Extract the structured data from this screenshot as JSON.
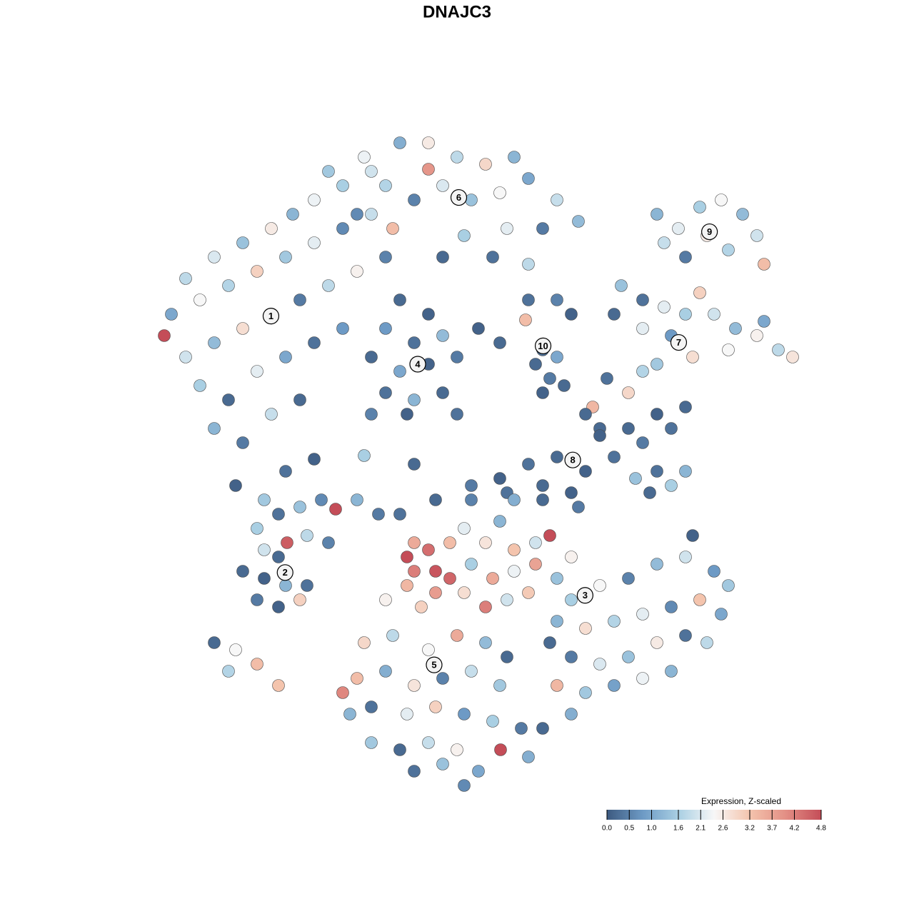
{
  "chart_data": {
    "type": "scatter",
    "title": "DNAJC3",
    "xlim": [
      -48,
      48
    ],
    "ylim": [
      -46,
      46
    ],
    "colorbar_title": "Expression, Z-scaled",
    "clim": [
      0,
      4.8
    ],
    "colormap": [
      "#3d5a80",
      "#6d9ac5",
      "#a9cfe3",
      "#f7f7f7",
      "#f4c4ad",
      "#e38f85",
      "#c44d58"
    ],
    "colorbar_ticks": [
      {
        "value": 0,
        "label": "0.0"
      },
      0.5,
      {
        "value": 1,
        "label": "1.0"
      },
      1.6,
      2.1,
      2.6,
      3.2,
      3.7,
      4.2,
      4.8
    ],
    "series": [
      {
        "name": "1",
        "x": [
          -40,
          -36,
          -32,
          -28,
          -25,
          -22,
          -18,
          -14,
          -42,
          -38,
          -34,
          -30,
          -26,
          -22,
          -18,
          -14,
          -43,
          -40,
          -36,
          -32,
          -28,
          -24,
          -20,
          -16,
          -12,
          -38,
          -34,
          -30,
          -26,
          -22,
          -18,
          -36,
          -32,
          -28,
          -24,
          -33,
          -29,
          -26
        ],
        "y": [
          25,
          28,
          30,
          32,
          34,
          36,
          38,
          40,
          20,
          22,
          24,
          26,
          28,
          30,
          32,
          34,
          17,
          14,
          16,
          18,
          20,
          22,
          24,
          26,
          28,
          10,
          8,
          12,
          14,
          16,
          18,
          4,
          2,
          6,
          8,
          -4,
          -6,
          -2
        ],
        "values": [
          1.8,
          2.1,
          1.4,
          2.6,
          1.2,
          2.3,
          1.6,
          2.0,
          1.0,
          2.4,
          1.7,
          3.0,
          1.5,
          2.2,
          0.6,
          1.9,
          4.8,
          2.0,
          1.3,
          2.8,
          1.1,
          0.4,
          1.8,
          2.5,
          0.5,
          1.6,
          0.2,
          2.2,
          1.0,
          0.3,
          0.8,
          1.2,
          0.4,
          1.9,
          0.2,
          0.1,
          1.5,
          0.3
        ]
      },
      {
        "name": "2",
        "x": [
          -30,
          -27,
          -24,
          -21,
          -19,
          -16,
          -13,
          -29,
          -27,
          -23,
          -20,
          -25.8,
          -32,
          -29,
          -26,
          -23,
          -30,
          -27,
          -24,
          -36,
          -33,
          -30,
          -34,
          -27
        ],
        "y": [
          -10,
          -8,
          -7,
          -6,
          -7.3,
          -6,
          -8,
          -13,
          -14,
          -11,
          -12,
          -12,
          -16,
          -17,
          -18,
          -18,
          -20,
          -21,
          -20,
          -26,
          -27,
          -29,
          -30,
          -32
        ],
        "values": [
          1.6,
          0.3,
          1.4,
          0.6,
          4.8,
          1.2,
          0.4,
          2.0,
          0.2,
          1.8,
          0.5,
          4.6,
          0.2,
          0.1,
          1.2,
          0.3,
          0.4,
          0.1,
          3.0,
          0.2,
          2.4,
          3.3,
          1.7,
          3.2
        ]
      },
      {
        "name": "3",
        "x": [
          -1,
          2,
          4,
          6,
          9,
          11,
          14,
          0,
          3,
          6,
          9,
          12,
          -1,
          2,
          5,
          8,
          0,
          5,
          10,
          15,
          14,
          18,
          22,
          26,
          30,
          34,
          36,
          12,
          16,
          20,
          24,
          28,
          32,
          35,
          14,
          18,
          22,
          26,
          30,
          33,
          12,
          16,
          20,
          24,
          28,
          11,
          14,
          31
        ],
        "y": [
          -10,
          -12,
          -9,
          -13,
          -12,
          -11,
          -14,
          -15,
          -17,
          -16,
          -15,
          -17,
          -19,
          -21,
          -20,
          -19,
          -6,
          -5,
          -6,
          -7,
          -20,
          -18,
          -17,
          -15,
          -14,
          -16,
          -18,
          -23,
          -24,
          -23,
          -22,
          -21,
          -20,
          -22,
          -28,
          -29,
          -28,
          -26,
          -25,
          -26,
          -32,
          -33,
          -32,
          -31,
          -30,
          -26,
          -36,
          -11
        ],
        "values": [
          2.2,
          2.7,
          1.2,
          3.2,
          2.0,
          4.8,
          2.5,
          1.6,
          3.6,
          2.3,
          3.7,
          1.4,
          2.8,
          4.2,
          2.0,
          3.1,
          0.5,
          0.3,
          0.2,
          0.4,
          1.6,
          2.4,
          0.5,
          1.3,
          2.0,
          0.8,
          1.5,
          1.2,
          2.8,
          1.7,
          2.2,
          0.6,
          3.2,
          1.0,
          0.4,
          2.1,
          1.4,
          2.6,
          0.3,
          1.8,
          3.4,
          1.5,
          0.9,
          2.3,
          1.2,
          0.2,
          1.1,
          0.1
        ]
      },
      {
        "name": "4",
        "x": [
          -10,
          -6,
          -12,
          -8,
          -4,
          -14,
          -10,
          -6,
          -2,
          -12,
          -8,
          -4,
          -9,
          -14,
          -2,
          1
        ],
        "y": [
          22,
          20,
          18,
          16,
          17,
          14,
          12,
          13,
          14,
          9,
          8,
          9,
          6,
          6,
          6,
          18
        ],
        "values": [
          0.2,
          0.1,
          0.8,
          0.3,
          1.3,
          0.2,
          1.0,
          0.1,
          0.4,
          0.3,
          1.2,
          0.2,
          0.1,
          0.5,
          0.3,
          0.1
        ]
      },
      {
        "name": "5",
        "x": [
          -8,
          -9,
          -6,
          -8,
          -5,
          -3,
          -5,
          -9,
          -7,
          -3,
          -10,
          -5,
          -12,
          -15,
          -11,
          -6,
          -2,
          2,
          5,
          -16,
          -12,
          -8,
          -4,
          0,
          4,
          -17,
          -14,
          -9,
          -5,
          -1,
          3,
          7,
          -14,
          -10,
          -6,
          -2,
          1,
          4.1,
          -8,
          -4,
          -1,
          8,
          10,
          -18
        ],
        "y": [
          -12,
          -14,
          -13,
          -16,
          -16,
          -17,
          -19,
          -18,
          -21,
          -12,
          -8,
          -6,
          -20,
          -26,
          -25,
          -27,
          -25,
          -26,
          -28,
          -31,
          -30,
          -32,
          -31,
          -30,
          -32,
          -36,
          -35,
          -36,
          -35,
          -36,
          -37,
          -38,
          -40,
          -41,
          -40,
          -41,
          -44,
          -41,
          -44,
          -43,
          -46,
          -42,
          -38,
          -33
        ],
        "values": [
          3.6,
          4.8,
          4.4,
          4.2,
          4.7,
          4.5,
          3.8,
          3.4,
          3.0,
          3.3,
          0.3,
          0.2,
          2.5,
          2.9,
          1.8,
          2.4,
          3.6,
          1.3,
          0.2,
          3.3,
          1.1,
          2.7,
          0.5,
          1.9,
          1.5,
          1.2,
          0.3,
          2.2,
          3.0,
          0.8,
          1.6,
          0.4,
          1.5,
          0.2,
          1.9,
          2.5,
          1.0,
          4.8,
          0.3,
          1.4,
          0.6,
          1.1,
          0.2,
          4.1
        ]
      },
      {
        "name": "6",
        "x": [
          -20,
          -15,
          -10,
          -6,
          -2,
          2,
          6,
          -6,
          -12,
          -8,
          -4,
          0,
          4,
          8,
          12,
          15,
          10,
          5,
          -1,
          -11,
          -16,
          8,
          3,
          -4
        ],
        "y": [
          40,
          42,
          44,
          44,
          42,
          41,
          42,
          40.3,
          38,
          36,
          38,
          36,
          37,
          39,
          36,
          33,
          32,
          32,
          31,
          32,
          34,
          27,
          28,
          28
        ],
        "values": [
          1.5,
          2.3,
          1.1,
          2.6,
          1.8,
          2.9,
          1.2,
          3.9,
          1.7,
          0.5,
          2.1,
          1.4,
          2.4,
          1.0,
          1.9,
          1.3,
          0.4,
          2.2,
          1.6,
          3.3,
          0.6,
          1.8,
          0.3,
          0.2
        ]
      },
      {
        "name": "7",
        "x": [
          21,
          24,
          27,
          30,
          32,
          34,
          37,
          40,
          43,
          45,
          41,
          36,
          28,
          24,
          20,
          31,
          26,
          19,
          22,
          24,
          17,
          18
        ],
        "y": [
          24,
          22,
          21,
          20,
          23,
          20,
          18,
          17,
          15,
          14,
          19,
          15,
          17,
          18,
          20,
          14,
          13,
          11,
          9,
          12,
          7,
          4
        ],
        "values": [
          1.4,
          0.3,
          2.2,
          1.6,
          3.0,
          2.0,
          1.3,
          2.5,
          1.8,
          2.7,
          1.0,
          2.4,
          0.8,
          2.2,
          0.2,
          2.8,
          1.5,
          0.3,
          2.9,
          1.7,
          3.4,
          0.2
        ]
      },
      {
        "name": "8",
        "x": [
          16,
          18,
          20,
          22,
          24,
          26,
          28,
          30,
          16,
          12,
          8,
          4,
          0,
          23,
          26,
          28,
          30,
          25,
          10,
          6,
          14,
          -8,
          -22,
          -15
        ],
        "y": [
          6,
          3,
          0,
          4,
          2,
          6,
          4,
          7,
          -2,
          0,
          -1,
          -3,
          -4,
          -3,
          -2,
          -4,
          -2,
          -5,
          -4,
          -6,
          -5,
          -1,
          -0.3,
          0.2
        ],
        "values": [
          0.2,
          0.1,
          0.3,
          0.2,
          0.4,
          0.1,
          0.3,
          0.2,
          0.1,
          0.2,
          0.3,
          0.1,
          0.4,
          1.4,
          0.3,
          1.6,
          1.2,
          0.2,
          0.2,
          1.1,
          0.1,
          0.2,
          0.1,
          1.6
        ]
      },
      {
        "name": "9",
        "x": [
          26,
          29,
          32,
          35,
          38,
          40,
          36,
          33,
          30,
          27,
          41
        ],
        "y": [
          34,
          32,
          35,
          36,
          34,
          31,
          29,
          31,
          28,
          30,
          27
        ],
        "values": [
          1.2,
          2.2,
          1.6,
          2.4,
          1.3,
          2.0,
          1.7,
          2.6,
          0.4,
          1.9,
          3.3
        ]
      },
      {
        "name": "10",
        "x": [
          4,
          7.6,
          8,
          12,
          14,
          9,
          11,
          10,
          12,
          13,
          10
        ],
        "y": [
          16,
          19.2,
          22,
          22,
          20,
          13,
          11,
          9,
          14,
          10,
          15
        ],
        "values": [
          0.2,
          3.3,
          0.3,
          0.5,
          0.1,
          0.2,
          0.4,
          0.1,
          1.0,
          0.2,
          0.3
        ]
      }
    ]
  }
}
